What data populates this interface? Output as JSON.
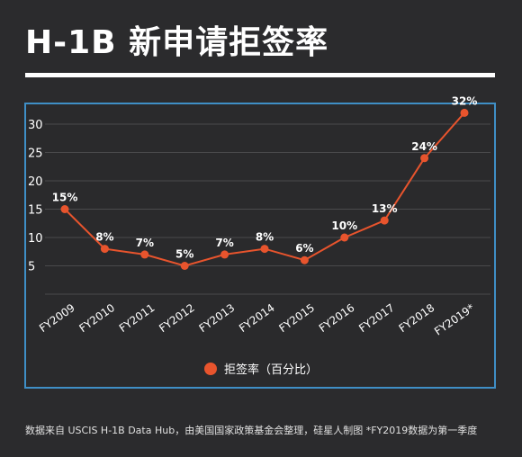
{
  "title": "H-1B 新申请拒签率",
  "footnote": "数据来自 USCIS H-1B Data Hub，由美国国家政策基金会整理，硅星人制图 *FY2019数据为第一季度",
  "colors": {
    "background": "#2b2b2d",
    "frame": "#3f8fc6",
    "series": "#e8542d",
    "grid": "#4a4a4c"
  },
  "chart_data": {
    "type": "line",
    "categories": [
      "FY2009",
      "FY2010",
      "FY2011",
      "FY2012",
      "FY2013",
      "FY2014",
      "FY2015",
      "FY2016",
      "FY2017",
      "FY2018",
      "FY2019*"
    ],
    "series": [
      {
        "name": "拒签率（百分比）",
        "values": [
          15,
          8,
          7,
          5,
          7,
          8,
          6,
          10,
          13,
          24,
          32
        ],
        "data_labels": [
          "15%",
          "8%",
          "7%",
          "5%",
          "7%",
          "8%",
          "6%",
          "10%",
          "13%",
          "24%",
          "32%"
        ]
      }
    ],
    "y_ticks": [
      5,
      10,
      15,
      20,
      25,
      30
    ],
    "ylim": [
      0,
      33
    ],
    "grid": true,
    "legend_position": "bottom-center"
  }
}
